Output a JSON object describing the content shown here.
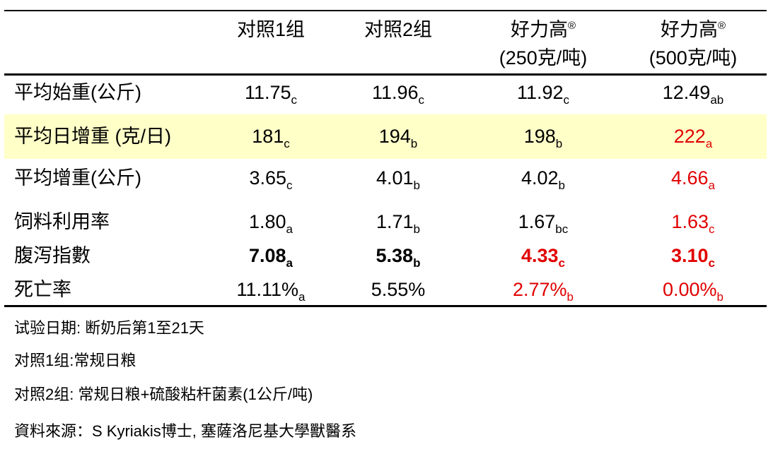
{
  "header": {
    "col1": "对照1组",
    "col2": "对照2组",
    "col3_name": "好力高",
    "col3_mark": "®",
    "col3_dose": "(250克/吨)",
    "col4_name": "好力高",
    "col4_mark": "®",
    "col4_dose": "(500克/吨)"
  },
  "rows": [
    {
      "label": "平均始重(公斤)",
      "v": [
        [
          "11.75",
          "c"
        ],
        [
          "11.96",
          "c"
        ],
        [
          "11.92",
          "c"
        ],
        [
          "12.49",
          "ab"
        ]
      ]
    },
    {
      "label": "平均日增重 (克/日)",
      "v": [
        [
          "181",
          "c"
        ],
        [
          "194",
          "b"
        ],
        [
          "198",
          "b"
        ],
        [
          "222",
          "a"
        ]
      ]
    },
    {
      "label": "平均增重(公斤)",
      "v": [
        [
          "3.65",
          "c"
        ],
        [
          "4.01",
          "b"
        ],
        [
          "4.02",
          "b"
        ],
        [
          "4.66",
          "a"
        ]
      ]
    },
    {
      "label": "饲料利用率",
      "v": [
        [
          "1.80",
          "a"
        ],
        [
          "1.71",
          "b"
        ],
        [
          "1.67",
          "bc"
        ],
        [
          "1.63",
          "c"
        ]
      ]
    },
    {
      "label": "腹泻指數",
      "v": [
        [
          "7.08",
          "a"
        ],
        [
          "5.38",
          "b"
        ],
        [
          "4.33",
          "c"
        ],
        [
          "3.10",
          "c"
        ]
      ]
    },
    {
      "label": "死亡率",
      "v": [
        [
          "11.11%",
          "a"
        ],
        [
          "5.55%",
          ""
        ],
        [
          "2.77%",
          "b"
        ],
        [
          "0.00%",
          "b"
        ]
      ]
    }
  ],
  "notes": {
    "trial": "试验日期: 断奶后第1至21天",
    "group1": "对照1组:常规日粮",
    "group2": "对照2组: 常规日粮+硫酸粘杆菌素(1公斤/吨)",
    "source": "資料來源：S Kyriakis博士, 塞薩洛尼基大學獸醫系"
  },
  "colors": {
    "highlight": "#ffffc8",
    "emphasis": "#e00000"
  }
}
